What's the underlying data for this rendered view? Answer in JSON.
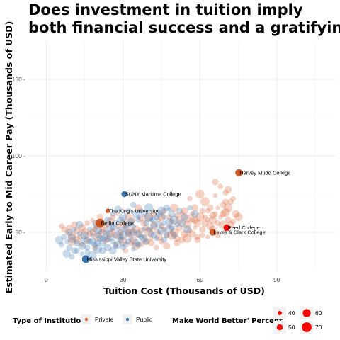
{
  "chart_data": {
    "type": "scatter",
    "title": [
      "Does investment in tuition imply",
      "both financial success and a gratifying career?"
    ],
    "xlabel": "Tuition Cost  (Thousands of USD)",
    "ylabel": "Estimated Early to Mid Career Pay (Thousands of USD)",
    "xlim": [
      -7,
      113
    ],
    "ylim": [
      25,
      175
    ],
    "xticks": [
      0,
      30,
      60,
      90
    ],
    "yticks": [
      50,
      100,
      150
    ],
    "grid": true,
    "legend_position": "bottom",
    "colors": {
      "private": "#d95f30",
      "public": "#3a78b5",
      "size_legend": "#ff0000"
    },
    "color_legend": {
      "title": "Type of Institution",
      "items": [
        {
          "label": "Private",
          "color": "#d95f30"
        },
        {
          "label": "Public",
          "color": "#3a78b5"
        }
      ]
    },
    "size_legend": {
      "title": "'Make World Better' Percent",
      "items": [
        {
          "label": "40",
          "value": 40
        },
        {
          "label": "50",
          "value": 50
        },
        {
          "label": "60",
          "value": 60
        },
        {
          "label": "70",
          "value": 70
        }
      ]
    },
    "highlighted": [
      {
        "name": "Harvey Mudd College",
        "x": 75.2,
        "y": 89,
        "type": "private",
        "mwb": 52
      },
      {
        "name": "SUNY Maritime College",
        "x": 30.5,
        "y": 75,
        "type": "public",
        "mwb": 42
      },
      {
        "name": "The King's University",
        "x": 24,
        "y": 64,
        "type": "private",
        "mwb": 30
      },
      {
        "name": "Reed College",
        "x": 70.5,
        "y": 53,
        "type": "private",
        "mwb": 48
      },
      {
        "name": "Lewis & Clark College",
        "x": 65,
        "y": 50,
        "type": "private",
        "mwb": 48
      },
      {
        "name": "Berlin College",
        "x": 21,
        "y": 56,
        "type": "private",
        "mwb": 66
      },
      {
        "name": "Mississippi Valley State University",
        "x": 15.5,
        "y": 32.5,
        "type": "public",
        "mwb": 58
      }
    ],
    "series": [
      {
        "name": "Private",
        "points": [
          [
            6,
            54
          ],
          [
            7,
            52
          ],
          [
            8,
            50
          ],
          [
            9,
            53
          ],
          [
            10,
            48
          ],
          [
            11,
            55
          ],
          [
            12,
            51
          ],
          [
            13,
            47
          ],
          [
            14,
            53
          ],
          [
            15,
            50
          ],
          [
            16,
            56
          ],
          [
            17,
            49
          ],
          [
            18,
            58
          ],
          [
            19,
            52
          ],
          [
            20,
            47
          ],
          [
            21,
            60
          ],
          [
            22,
            50
          ],
          [
            23,
            54
          ],
          [
            24,
            46
          ],
          [
            25,
            57
          ],
          [
            26,
            51
          ],
          [
            27,
            48
          ],
          [
            28,
            62
          ],
          [
            29,
            50
          ],
          [
            30,
            44
          ],
          [
            31,
            53
          ],
          [
            32,
            49
          ],
          [
            33,
            56
          ],
          [
            34,
            45
          ],
          [
            35,
            52
          ],
          [
            36,
            48
          ],
          [
            37,
            59
          ],
          [
            38,
            47
          ],
          [
            39,
            53
          ],
          [
            40,
            50
          ],
          [
            41,
            43
          ],
          [
            42,
            55
          ],
          [
            43,
            51
          ],
          [
            44,
            47
          ],
          [
            45,
            60
          ],
          [
            46,
            52
          ],
          [
            47,
            48
          ],
          [
            48,
            54
          ],
          [
            49,
            57
          ],
          [
            50,
            50
          ],
          [
            51,
            46
          ],
          [
            52,
            53
          ],
          [
            53,
            62
          ],
          [
            54,
            49
          ],
          [
            55,
            55
          ],
          [
            56,
            51
          ],
          [
            57,
            58
          ],
          [
            58,
            53
          ],
          [
            59,
            47
          ],
          [
            60,
            60
          ],
          [
            61,
            52
          ],
          [
            62,
            56
          ],
          [
            63,
            64
          ],
          [
            64,
            54
          ],
          [
            65,
            58
          ],
          [
            66,
            62
          ],
          [
            67,
            56
          ],
          [
            68,
            60
          ],
          [
            69,
            68
          ],
          [
            70,
            63
          ],
          [
            71,
            58
          ],
          [
            72,
            55
          ],
          [
            73,
            72
          ],
          [
            74,
            62
          ],
          [
            75,
            60
          ],
          [
            68,
            80
          ],
          [
            70,
            76
          ],
          [
            66,
            74
          ],
          [
            72,
            70
          ],
          [
            62,
            70
          ],
          [
            64,
            66
          ],
          [
            58,
            66
          ],
          [
            56,
            72
          ],
          [
            54,
            64
          ],
          [
            50,
            66
          ],
          [
            48,
            60
          ],
          [
            46,
            64
          ],
          [
            44,
            58
          ],
          [
            42,
            62
          ],
          [
            40,
            60
          ],
          [
            38,
            56
          ],
          [
            36,
            66
          ],
          [
            34,
            58
          ],
          [
            32,
            60
          ],
          [
            30,
            56
          ],
          [
            28,
            54
          ],
          [
            26,
            60
          ],
          [
            24,
            55
          ],
          [
            22,
            52
          ],
          [
            20,
            55
          ],
          [
            18,
            50
          ],
          [
            16,
            45
          ],
          [
            14,
            42
          ],
          [
            12,
            45
          ],
          [
            10,
            44
          ],
          [
            33,
            43
          ],
          [
            37,
            42
          ],
          [
            41,
            46
          ],
          [
            45,
            44
          ],
          [
            49,
            48
          ],
          [
            53,
            45
          ],
          [
            57,
            49
          ],
          [
            61,
            48
          ],
          [
            65,
            52
          ],
          [
            69,
            55
          ],
          [
            73,
            57
          ],
          [
            67,
            48
          ],
          [
            63,
            47
          ],
          [
            59,
            45
          ],
          [
            55,
            46
          ],
          [
            51,
            43
          ],
          [
            47,
            41
          ],
          [
            43,
            40
          ],
          [
            39,
            44
          ],
          [
            35,
            41
          ],
          [
            31,
            38
          ],
          [
            27,
            42
          ],
          [
            23,
            44
          ],
          [
            19,
            40
          ],
          [
            60,
            75
          ],
          [
            66,
            83
          ],
          [
            71,
            78
          ],
          [
            63,
            58
          ],
          [
            58,
            58
          ],
          [
            52,
            58
          ],
          [
            57,
            62
          ],
          [
            61,
            64
          ],
          [
            67,
            66
          ],
          [
            70,
            70
          ],
          [
            71,
            66
          ],
          [
            69,
            62
          ],
          [
            65,
            61
          ],
          [
            62,
            60
          ],
          [
            59,
            56
          ],
          [
            55,
            59
          ],
          [
            51,
            61
          ],
          [
            45,
            54
          ],
          [
            41,
            52
          ],
          [
            37,
            51
          ],
          [
            33,
            50
          ],
          [
            29,
            47
          ],
          [
            25,
            49
          ]
        ]
      },
      {
        "name": "Public",
        "points": [
          [
            5,
            45
          ],
          [
            6,
            42
          ],
          [
            7,
            47
          ],
          [
            8,
            44
          ],
          [
            9,
            40
          ],
          [
            10,
            46
          ],
          [
            11,
            38
          ],
          [
            12,
            43
          ],
          [
            13,
            49
          ],
          [
            14,
            41
          ],
          [
            15,
            45
          ],
          [
            16,
            37
          ],
          [
            17,
            44
          ],
          [
            18,
            48
          ],
          [
            19,
            42
          ],
          [
            20,
            39
          ],
          [
            21,
            46
          ],
          [
            22,
            43
          ],
          [
            23,
            50
          ],
          [
            24,
            40
          ],
          [
            25,
            47
          ],
          [
            26,
            44
          ],
          [
            27,
            41
          ],
          [
            28,
            52
          ],
          [
            29,
            45
          ],
          [
            30,
            48
          ],
          [
            31,
            42
          ],
          [
            32,
            55
          ],
          [
            33,
            46
          ],
          [
            34,
            50
          ],
          [
            35,
            43
          ],
          [
            36,
            58
          ],
          [
            37,
            47
          ],
          [
            38,
            52
          ],
          [
            39,
            44
          ],
          [
            40,
            60
          ],
          [
            41,
            49
          ],
          [
            42,
            54
          ],
          [
            43,
            46
          ],
          [
            44,
            62
          ],
          [
            45,
            51
          ],
          [
            46,
            56
          ],
          [
            47,
            48
          ],
          [
            48,
            65
          ],
          [
            49,
            53
          ],
          [
            50,
            58
          ],
          [
            52,
            64
          ],
          [
            54,
            60
          ],
          [
            56,
            66
          ],
          [
            58,
            62
          ],
          [
            8,
            36
          ],
          [
            10,
            34
          ],
          [
            12,
            38
          ],
          [
            14,
            36
          ],
          [
            16,
            40
          ],
          [
            18,
            35
          ],
          [
            20,
            43
          ],
          [
            22,
            38
          ],
          [
            24,
            45
          ],
          [
            26,
            38
          ],
          [
            28,
            42
          ],
          [
            30,
            40
          ],
          [
            32,
            44
          ],
          [
            34,
            39
          ],
          [
            36,
            42
          ],
          [
            20,
            52
          ],
          [
            22,
            56
          ],
          [
            24,
            58
          ],
          [
            26,
            62
          ],
          [
            28,
            65
          ],
          [
            30,
            60
          ],
          [
            32,
            64
          ],
          [
            34,
            68
          ],
          [
            36,
            60
          ],
          [
            38,
            62
          ],
          [
            40,
            66
          ],
          [
            42,
            58
          ],
          [
            44,
            55
          ],
          [
            46,
            60
          ],
          [
            48,
            57
          ],
          [
            18,
            44
          ],
          [
            20,
            48
          ],
          [
            22,
            46
          ],
          [
            24,
            50
          ],
          [
            26,
            53
          ],
          [
            28,
            48
          ],
          [
            30,
            52
          ],
          [
            32,
            50
          ],
          [
            34,
            54
          ],
          [
            36,
            49
          ],
          [
            38,
            46
          ],
          [
            40,
            52
          ],
          [
            42,
            48
          ],
          [
            44,
            50
          ],
          [
            46,
            45
          ],
          [
            48,
            52
          ],
          [
            50,
            48
          ],
          [
            9,
            50
          ],
          [
            11,
            52
          ],
          [
            13,
            55
          ],
          [
            15,
            48
          ],
          [
            17,
            52
          ],
          [
            19,
            56
          ],
          [
            21,
            50
          ],
          [
            23,
            47
          ],
          [
            25,
            53
          ],
          [
            27,
            56
          ],
          [
            29,
            58
          ],
          [
            31,
            54
          ],
          [
            33,
            57
          ],
          [
            35,
            62
          ],
          [
            37,
            64
          ],
          [
            39,
            56
          ],
          [
            41,
            58
          ],
          [
            43,
            60
          ],
          [
            45,
            64
          ],
          [
            47,
            66
          ],
          [
            49,
            62
          ],
          [
            51,
            55
          ],
          [
            53,
            56
          ],
          [
            55,
            52
          ]
        ]
      }
    ]
  }
}
